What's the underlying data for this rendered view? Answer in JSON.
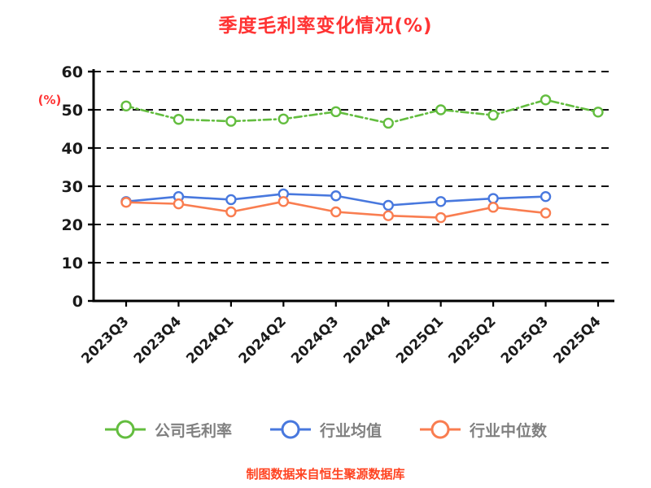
{
  "chart_data": {
    "type": "line",
    "title": "季度毛利率变化情况(%)",
    "ylabel": "(%)",
    "xlabel": "",
    "categories": [
      "2023Q3",
      "2023Q4",
      "2024Q1",
      "2024Q2",
      "2024Q3",
      "2024Q4",
      "2025Q1",
      "2025Q2",
      "2025Q3",
      "2025Q4"
    ],
    "series": [
      {
        "id": "company-gross-margin",
        "name": "公司毛利率",
        "color": "#63bd3f",
        "line_style": "dashed",
        "values": [
          51.0,
          47.5,
          47.0,
          47.6,
          49.5,
          46.5,
          50.0,
          48.6,
          52.6,
          49.4
        ]
      },
      {
        "id": "industry-average",
        "name": "行业均值",
        "color": "#4878de",
        "line_style": "solid",
        "values": [
          26.0,
          27.3,
          26.5,
          28.0,
          27.5,
          25.0,
          26.0,
          26.8,
          27.3,
          null
        ]
      },
      {
        "id": "industry-median",
        "name": "行业中位数",
        "color": "#f97d50",
        "line_style": "solid",
        "values": [
          25.8,
          25.4,
          23.3,
          26.0,
          23.3,
          22.3,
          21.8,
          24.5,
          23.0,
          null
        ]
      }
    ],
    "ylim": [
      0,
      60
    ],
    "yticks": [
      0,
      10,
      20,
      30,
      40,
      50,
      60
    ],
    "grid": "horizontal-dashed",
    "legend_position": "bottom",
    "colors": {
      "title": "#ff3333",
      "ylabel": "#ff3333",
      "footer": "#ff4422",
      "grid": "#111111",
      "axis": "#000000",
      "tick_label": "#1a1a1a",
      "legend_text": "#808080"
    }
  },
  "footer": {
    "source_note": "制图数据来自恒生聚源数据库"
  }
}
